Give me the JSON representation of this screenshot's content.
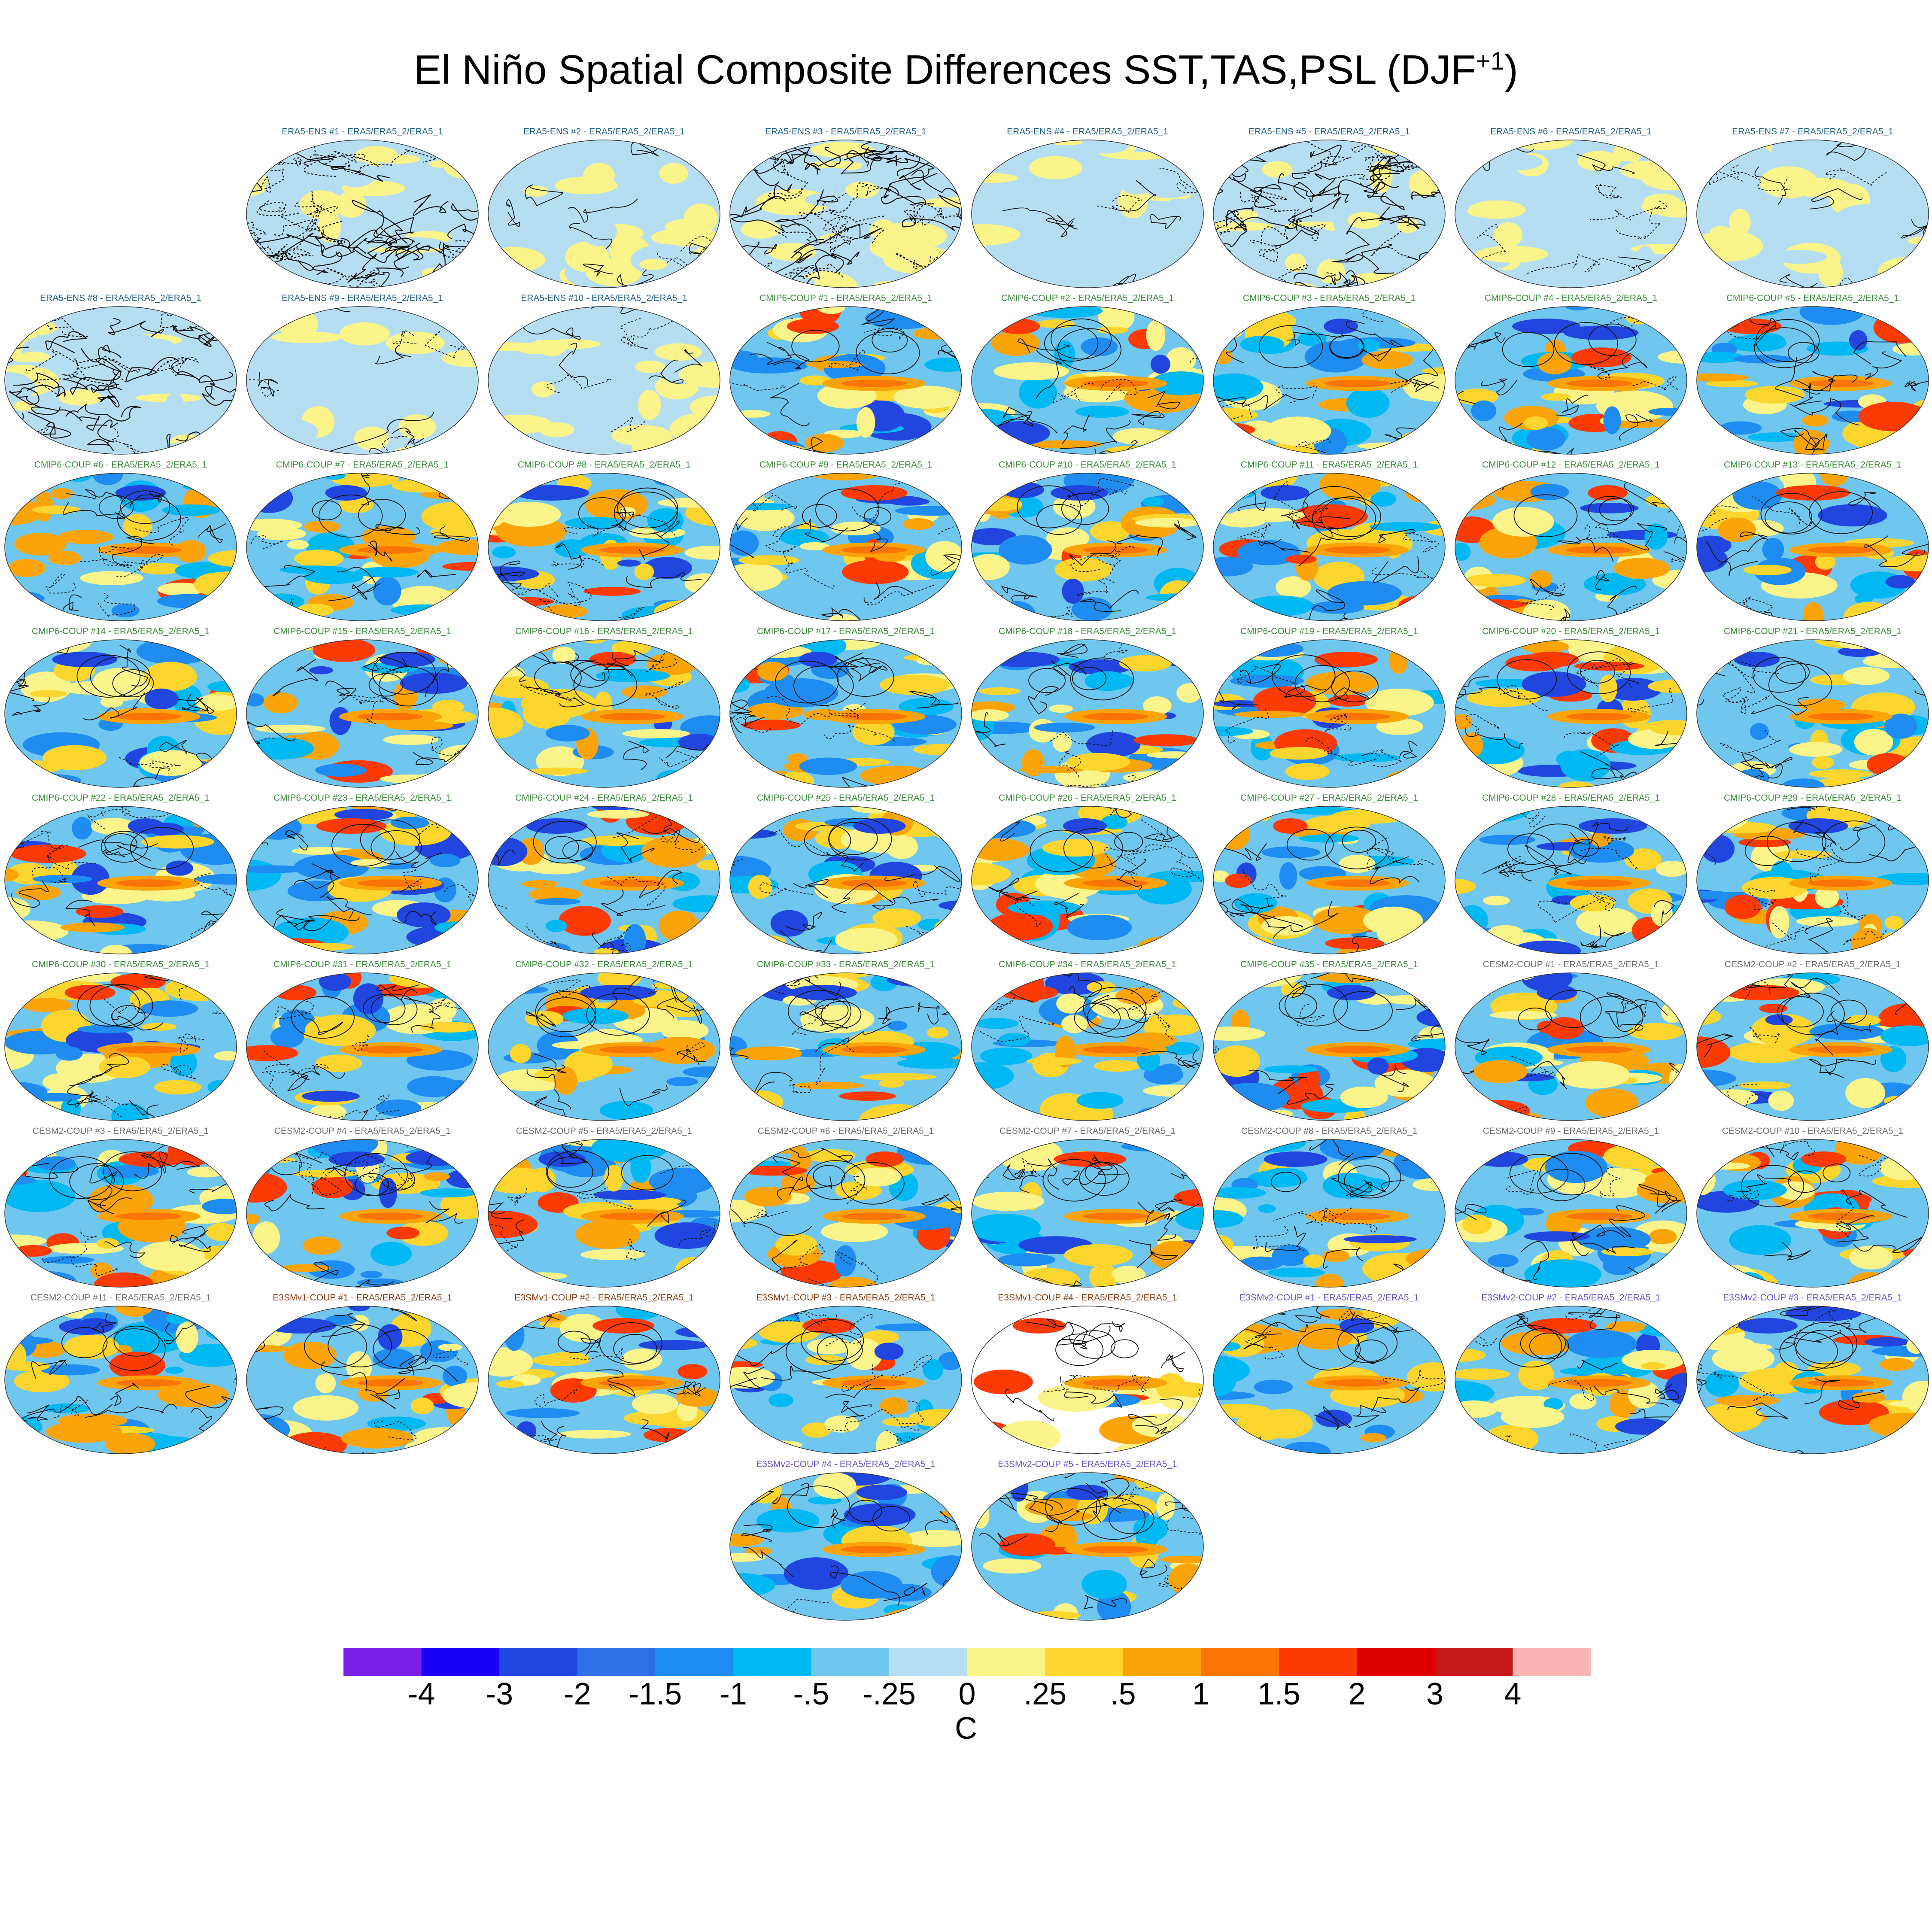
{
  "title": "El Niño Spatial Composite Differences SST,TAS,PSL (DJF",
  "title_sup": "+1",
  "title_close": ")",
  "chart_data": {
    "type": "heatmap",
    "title": "El Niño Spatial Composite Differences SST,TAS,PSL (DJF+1)",
    "colorbar": {
      "unit": "C",
      "tick_labels": [
        "-4",
        "-3",
        "-2",
        "-1.5",
        "-1",
        "-.5",
        "-.25",
        "0",
        ".25",
        ".5",
        "1",
        "1.5",
        "2",
        "3",
        "4"
      ],
      "levels": [
        -4,
        -3,
        -2,
        -1.5,
        -1,
        -0.5,
        -0.25,
        0,
        0.25,
        0.5,
        1,
        1.5,
        2,
        3,
        4
      ],
      "colors": [
        "#7a1ee8",
        "#1a00f2",
        "#2146e0",
        "#2f6fe6",
        "#1e8cf0",
        "#00b8f2",
        "#6fc7f0",
        "#b6def3",
        "#fbf48a",
        "#fcd62e",
        "#fba40a",
        "#fb7406",
        "#fb3a06",
        "#e00000",
        "#c41818",
        "#fbb4b4"
      ]
    },
    "panels": [
      {
        "label": "ERA5-ENS    #1 - ERA5/ERA5_2/ERA5_1",
        "group": "ERA5-ENS",
        "pattern": "obs-contour"
      },
      {
        "label": "ERA5-ENS    #2 - ERA5/ERA5_2/ERA5_1",
        "group": "ERA5-ENS",
        "pattern": "obs"
      },
      {
        "label": "ERA5-ENS    #3 - ERA5/ERA5_2/ERA5_1",
        "group": "ERA5-ENS",
        "pattern": "obs-contour"
      },
      {
        "label": "ERA5-ENS    #4 - ERA5/ERA5_2/ERA5_1",
        "group": "ERA5-ENS",
        "pattern": "obs"
      },
      {
        "label": "ERA5-ENS    #5 - ERA5/ERA5_2/ERA5_1",
        "group": "ERA5-ENS",
        "pattern": "obs-contour"
      },
      {
        "label": "ERA5-ENS    #6 - ERA5/ERA5_2/ERA5_1",
        "group": "ERA5-ENS",
        "pattern": "obs"
      },
      {
        "label": "ERA5-ENS    #7 - ERA5/ERA5_2/ERA5_1",
        "group": "ERA5-ENS",
        "pattern": "obs"
      },
      {
        "label": "ERA5-ENS    #8 - ERA5/ERA5_2/ERA5_1",
        "group": "ERA5-ENS",
        "pattern": "obs-contour"
      },
      {
        "label": "ERA5-ENS    #9 - ERA5/ERA5_2/ERA5_1",
        "group": "ERA5-ENS",
        "pattern": "obs"
      },
      {
        "label": "ERA5-ENS    #10 - ERA5/ERA5_2/ERA5_1",
        "group": "ERA5-ENS",
        "pattern": "obs"
      },
      {
        "label": "CMIP6-COUP  #1 - ERA5/ERA5_2/ERA5_1",
        "group": "CMIP6-COUP",
        "pattern": "model"
      },
      {
        "label": "CMIP6-COUP  #2 - ERA5/ERA5_2/ERA5_1",
        "group": "CMIP6-COUP",
        "pattern": "model"
      },
      {
        "label": "CMIP6-COUP  #3 - ERA5/ERA5_2/ERA5_1",
        "group": "CMIP6-COUP",
        "pattern": "model"
      },
      {
        "label": "CMIP6-COUP  #4 - ERA5/ERA5_2/ERA5_1",
        "group": "CMIP6-COUP",
        "pattern": "model"
      },
      {
        "label": "CMIP6-COUP  #5 - ERA5/ERA5_2/ERA5_1",
        "group": "CMIP6-COUP",
        "pattern": "model"
      },
      {
        "label": "CMIP6-COUP  #6 - ERA5/ERA5_2/ERA5_1",
        "group": "CMIP6-COUP",
        "pattern": "model"
      },
      {
        "label": "CMIP6-COUP  #7 - ERA5/ERA5_2/ERA5_1",
        "group": "CMIP6-COUP",
        "pattern": "model"
      },
      {
        "label": "CMIP6-COUP  #8 - ERA5/ERA5_2/ERA5_1",
        "group": "CMIP6-COUP",
        "pattern": "model"
      },
      {
        "label": "CMIP6-COUP  #9 - ERA5/ERA5_2/ERA5_1",
        "group": "CMIP6-COUP",
        "pattern": "model"
      },
      {
        "label": "CMIP6-COUP  #10 - ERA5/ERA5_2/ERA5_1",
        "group": "CMIP6-COUP",
        "pattern": "model"
      },
      {
        "label": "CMIP6-COUP  #11 - ERA5/ERA5_2/ERA5_1",
        "group": "CMIP6-COUP",
        "pattern": "model"
      },
      {
        "label": "CMIP6-COUP  #12 - ERA5/ERA5_2/ERA5_1",
        "group": "CMIP6-COUP",
        "pattern": "model"
      },
      {
        "label": "CMIP6-COUP  #13 - ERA5/ERA5_2/ERA5_1",
        "group": "CMIP6-COUP",
        "pattern": "model"
      },
      {
        "label": "CMIP6-COUP  #14 - ERA5/ERA5_2/ERA5_1",
        "group": "CMIP6-COUP",
        "pattern": "model"
      },
      {
        "label": "CMIP6-COUP  #15 - ERA5/ERA5_2/ERA5_1",
        "group": "CMIP6-COUP",
        "pattern": "model"
      },
      {
        "label": "CMIP6-COUP  #16 - ERA5/ERA5_2/ERA5_1",
        "group": "CMIP6-COUP",
        "pattern": "model"
      },
      {
        "label": "CMIP6-COUP  #17 - ERA5/ERA5_2/ERA5_1",
        "group": "CMIP6-COUP",
        "pattern": "model"
      },
      {
        "label": "CMIP6-COUP  #18 - ERA5/ERA5_2/ERA5_1",
        "group": "CMIP6-COUP",
        "pattern": "model"
      },
      {
        "label": "CMIP6-COUP  #19 - ERA5/ERA5_2/ERA5_1",
        "group": "CMIP6-COUP",
        "pattern": "model"
      },
      {
        "label": "CMIP6-COUP  #20 - ERA5/ERA5_2/ERA5_1",
        "group": "CMIP6-COUP",
        "pattern": "model"
      },
      {
        "label": "CMIP6-COUP  #21 - ERA5/ERA5_2/ERA5_1",
        "group": "CMIP6-COUP",
        "pattern": "model"
      },
      {
        "label": "CMIP6-COUP  #22 - ERA5/ERA5_2/ERA5_1",
        "group": "CMIP6-COUP",
        "pattern": "model"
      },
      {
        "label": "CMIP6-COUP  #23 - ERA5/ERA5_2/ERA5_1",
        "group": "CMIP6-COUP",
        "pattern": "model"
      },
      {
        "label": "CMIP6-COUP  #24 - ERA5/ERA5_2/ERA5_1",
        "group": "CMIP6-COUP",
        "pattern": "model"
      },
      {
        "label": "CMIP6-COUP  #25 - ERA5/ERA5_2/ERA5_1",
        "group": "CMIP6-COUP",
        "pattern": "model"
      },
      {
        "label": "CMIP6-COUP  #26 - ERA5/ERA5_2/ERA5_1",
        "group": "CMIP6-COUP",
        "pattern": "model"
      },
      {
        "label": "CMIP6-COUP  #27 - ERA5/ERA5_2/ERA5_1",
        "group": "CMIP6-COUP",
        "pattern": "model"
      },
      {
        "label": "CMIP6-COUP  #28 - ERA5/ERA5_2/ERA5_1",
        "group": "CMIP6-COUP",
        "pattern": "model"
      },
      {
        "label": "CMIP6-COUP  #29 - ERA5/ERA5_2/ERA5_1",
        "group": "CMIP6-COUP",
        "pattern": "model"
      },
      {
        "label": "CMIP6-COUP  #30 - ERA5/ERA5_2/ERA5_1",
        "group": "CMIP6-COUP",
        "pattern": "model"
      },
      {
        "label": "CMIP6-COUP  #31 - ERA5/ERA5_2/ERA5_1",
        "group": "CMIP6-COUP",
        "pattern": "model"
      },
      {
        "label": "CMIP6-COUP  #32 - ERA5/ERA5_2/ERA5_1",
        "group": "CMIP6-COUP",
        "pattern": "model"
      },
      {
        "label": "CMIP6-COUP  #33 - ERA5/ERA5_2/ERA5_1",
        "group": "CMIP6-COUP",
        "pattern": "model"
      },
      {
        "label": "CMIP6-COUP  #34 - ERA5/ERA5_2/ERA5_1",
        "group": "CMIP6-COUP",
        "pattern": "model"
      },
      {
        "label": "CMIP6-COUP  #35 - ERA5/ERA5_2/ERA5_1",
        "group": "CMIP6-COUP",
        "pattern": "model"
      },
      {
        "label": "CESM2-COUP  #1 - ERA5/ERA5_2/ERA5_1",
        "group": "CESM2-COUP",
        "pattern": "model"
      },
      {
        "label": "CESM2-COUP  #2 - ERA5/ERA5_2/ERA5_1",
        "group": "CESM2-COUP",
        "pattern": "model"
      },
      {
        "label": "CESM2-COUP  #3 - ERA5/ERA5_2/ERA5_1",
        "group": "CESM2-COUP",
        "pattern": "model"
      },
      {
        "label": "CESM2-COUP  #4 - ERA5/ERA5_2/ERA5_1",
        "group": "CESM2-COUP",
        "pattern": "model"
      },
      {
        "label": "CESM2-COUP  #5 - ERA5/ERA5_2/ERA5_1",
        "group": "CESM2-COUP",
        "pattern": "model"
      },
      {
        "label": "CESM2-COUP  #6 - ERA5/ERA5_2/ERA5_1",
        "group": "CESM2-COUP",
        "pattern": "model"
      },
      {
        "label": "CESM2-COUP  #7 - ERA5/ERA5_2/ERA5_1",
        "group": "CESM2-COUP",
        "pattern": "model"
      },
      {
        "label": "CESM2-COUP  #8 - ERA5/ERA5_2/ERA5_1",
        "group": "CESM2-COUP",
        "pattern": "model"
      },
      {
        "label": "CESM2-COUP  #9 - ERA5/ERA5_2/ERA5_1",
        "group": "CESM2-COUP",
        "pattern": "model"
      },
      {
        "label": "CESM2-COUP  #10 - ERA5/ERA5_2/ERA5_1",
        "group": "CESM2-COUP",
        "pattern": "model"
      },
      {
        "label": "CESM2-COUP  #11 - ERA5/ERA5_2/ERA5_1",
        "group": "CESM2-COUP",
        "pattern": "model"
      },
      {
        "label": "E3SMv1-COUP #1 - ERA5/ERA5_2/ERA5_1",
        "group": "E3SMv1-COUP",
        "pattern": "model"
      },
      {
        "label": "E3SMv1-COUP #2 - ERA5/ERA5_2/ERA5_1",
        "group": "E3SMv1-COUP",
        "pattern": "model"
      },
      {
        "label": "E3SMv1-COUP #3 - ERA5/ERA5_2/ERA5_1",
        "group": "E3SMv1-COUP",
        "pattern": "model"
      },
      {
        "label": "E3SMv1-COUP #4 - ERA5/ERA5_2/ERA5_1",
        "group": "E3SMv1-COUP",
        "pattern": "partial"
      },
      {
        "label": "E3SMv2-COUP #1 - ERA5/ERA5_2/ERA5_1",
        "group": "E3SMv2-COUP",
        "pattern": "model"
      },
      {
        "label": "E3SMv2-COUP #2 - ERA5/ERA5_2/ERA5_1",
        "group": "E3SMv2-COUP",
        "pattern": "model"
      },
      {
        "label": "E3SMv2-COUP #3 - ERA5/ERA5_2/ERA5_1",
        "group": "E3SMv2-COUP",
        "pattern": "model"
      },
      {
        "label": "E3SMv2-COUP #4 - ERA5/ERA5_2/ERA5_1",
        "group": "E3SMv2-COUP",
        "pattern": "model"
      },
      {
        "label": "E3SMv2-COUP #5 - ERA5/ERA5_2/ERA5_1",
        "group": "E3SMv2-COUP",
        "pattern": "model"
      }
    ],
    "group_colors": {
      "ERA5-ENS": "#1f5f8b",
      "CMIP6-COUP": "#3b8a3b",
      "CESM2-COUP": "#707070",
      "E3SMv1-COUP": "#8b3a0f",
      "E3SMv2-COUP": "#6b4fd0"
    }
  }
}
